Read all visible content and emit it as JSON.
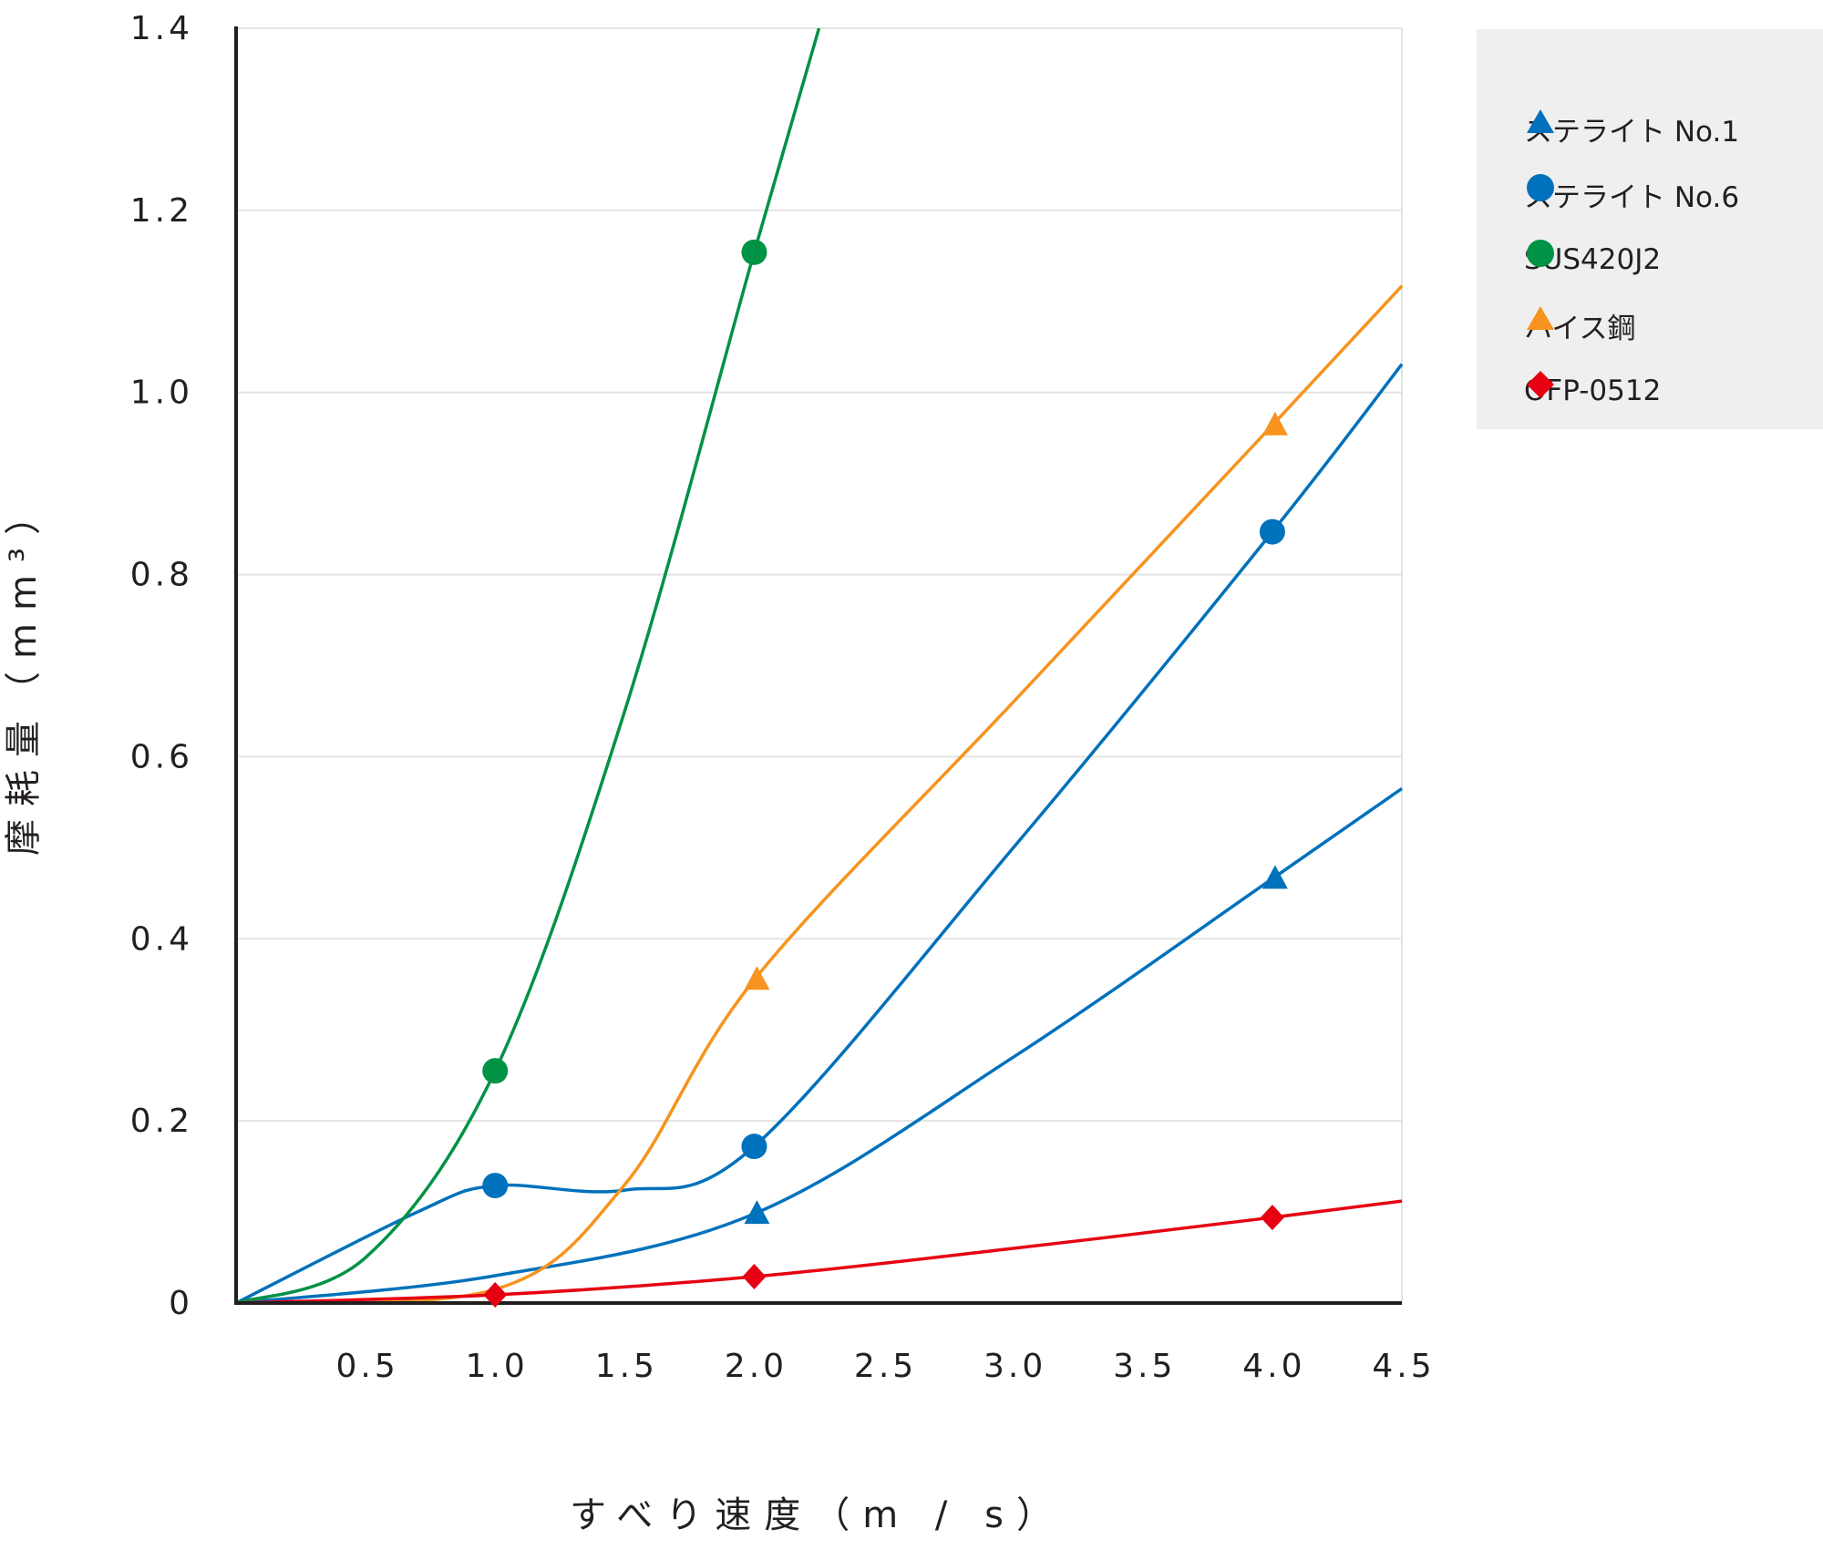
{
  "chart_data": {
    "type": "line",
    "title": "",
    "xlabel": "すべり速度（m / s）",
    "ylabel": "摩耗量（mm³）",
    "xlim": [
      0,
      4.5
    ],
    "ylim": [
      0,
      1.4
    ],
    "xticks": [
      "0.5",
      "1.0",
      "1.5",
      "2.0",
      "2.5",
      "3.0",
      "3.5",
      "4.0",
      "4.5"
    ],
    "xtick_values": [
      0.5,
      1.0,
      1.5,
      2.0,
      2.5,
      3.0,
      3.5,
      4.0,
      4.5
    ],
    "yticks": [
      "0",
      "0.2",
      "0.4",
      "0.6",
      "0.8",
      "1.0",
      "1.2",
      "1.4"
    ],
    "ytick_values": [
      0,
      0.2,
      0.4,
      0.6,
      0.8,
      1.0,
      1.2,
      1.4
    ],
    "grid": "horizontal",
    "legend_position": "top-right",
    "series": [
      {
        "name": "ステライト No.1",
        "color": "#0071bc",
        "marker": "triangle",
        "points": [
          [
            2.0,
            0.098
          ],
          [
            4.0,
            0.466
          ]
        ],
        "curve": [
          [
            0,
            0
          ],
          [
            1,
            0.03
          ],
          [
            2,
            0.098
          ],
          [
            3,
            0.27
          ],
          [
            4,
            0.466
          ],
          [
            4.5,
            0.565
          ]
        ]
      },
      {
        "name": "ステライト No.6",
        "color": "#0071bc",
        "marker": "circle",
        "points": [
          [
            1.0,
            0.129
          ],
          [
            2.0,
            0.172
          ],
          [
            4.0,
            0.847
          ]
        ],
        "curve": [
          [
            0,
            0
          ],
          [
            0.7,
            0.1
          ],
          [
            1,
            0.129
          ],
          [
            1.5,
            0.124
          ],
          [
            2,
            0.172
          ],
          [
            3,
            0.5
          ],
          [
            4,
            0.847
          ],
          [
            4.5,
            1.031
          ]
        ]
      },
      {
        "name": "SUS420J2",
        "color": "#009245",
        "marker": "circle",
        "points": [
          [
            1.0,
            0.255
          ],
          [
            2.0,
            1.154
          ]
        ],
        "curve": [
          [
            0,
            0
          ],
          [
            0.5,
            0.05
          ],
          [
            1,
            0.255
          ],
          [
            1.5,
            0.65
          ],
          [
            2,
            1.154
          ],
          [
            2.25,
            1.4
          ]
        ]
      },
      {
        "name": "ハイス鋼",
        "color": "#f7931e",
        "marker": "triangle",
        "points": [
          [
            2.0,
            0.355
          ],
          [
            4.0,
            0.964
          ]
        ],
        "curve": [
          [
            0,
            0
          ],
          [
            1,
            0.015
          ],
          [
            1.5,
            0.13
          ],
          [
            2,
            0.355
          ],
          [
            3,
            0.66
          ],
          [
            4,
            0.964
          ],
          [
            4.5,
            1.117
          ]
        ]
      },
      {
        "name": "OFP-0512",
        "color": "#e60012",
        "marker": "diamond",
        "points": [
          [
            1.0,
            0.009
          ],
          [
            2.0,
            0.029
          ],
          [
            4.0,
            0.094
          ]
        ],
        "curve": [
          [
            0,
            0
          ],
          [
            1,
            0.009
          ],
          [
            2,
            0.029
          ],
          [
            3,
            0.06
          ],
          [
            4,
            0.094
          ],
          [
            4.5,
            0.112
          ]
        ]
      }
    ]
  }
}
